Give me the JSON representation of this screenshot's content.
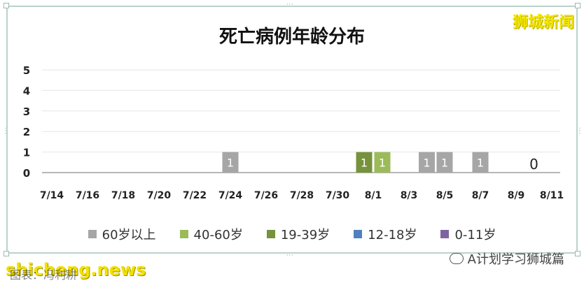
{
  "header": {
    "title": "死亡病例年龄分布"
  },
  "watermark_top": "狮城新闻",
  "footer": {
    "site": "shicheng.news",
    "caption": "图表：冯利耕",
    "account": "A计划学习狮城篇"
  },
  "legend": [
    {
      "label": "60岁以上",
      "color": "#a6a6a6"
    },
    {
      "label": "40-60岁",
      "color": "#9bbb59"
    },
    {
      "label": "19-39岁",
      "color": "#76923c"
    },
    {
      "label": "12-18岁",
      "color": "#4f81bd"
    },
    {
      "label": "0-11岁",
      "color": "#8064a2"
    }
  ],
  "chart_data": {
    "type": "bar",
    "title": "死亡病例年龄分布",
    "xlabel": "",
    "ylabel": "",
    "ylim": [
      0,
      5
    ],
    "yticks": [
      "0",
      "1",
      "2",
      "3",
      "4",
      "5"
    ],
    "x_tick_labels": [
      "7/14",
      "7/16",
      "7/18",
      "7/20",
      "7/22",
      "7/24",
      "7/26",
      "7/28",
      "7/30",
      "8/1",
      "8/3",
      "8/5",
      "8/7",
      "8/9",
      "8/11"
    ],
    "bars": [
      {
        "x": "7/24",
        "series": "60岁以上",
        "value": 1,
        "label": "1"
      },
      {
        "x": "8/1",
        "series": "19-39岁",
        "value": 1,
        "label": "1"
      },
      {
        "x": "8/1",
        "series": "40-60岁",
        "value": 1,
        "label": "1"
      },
      {
        "x": "8/4",
        "series": "60岁以上",
        "value": 1,
        "label": "1"
      },
      {
        "x": "8/5",
        "series": "60岁以上",
        "value": 1,
        "label": "1"
      },
      {
        "x": "8/7",
        "series": "60岁以上",
        "value": 1,
        "label": "1"
      }
    ],
    "annotation": {
      "x": "8/10",
      "text": "0"
    },
    "grid": true,
    "legend_position": "bottom"
  }
}
